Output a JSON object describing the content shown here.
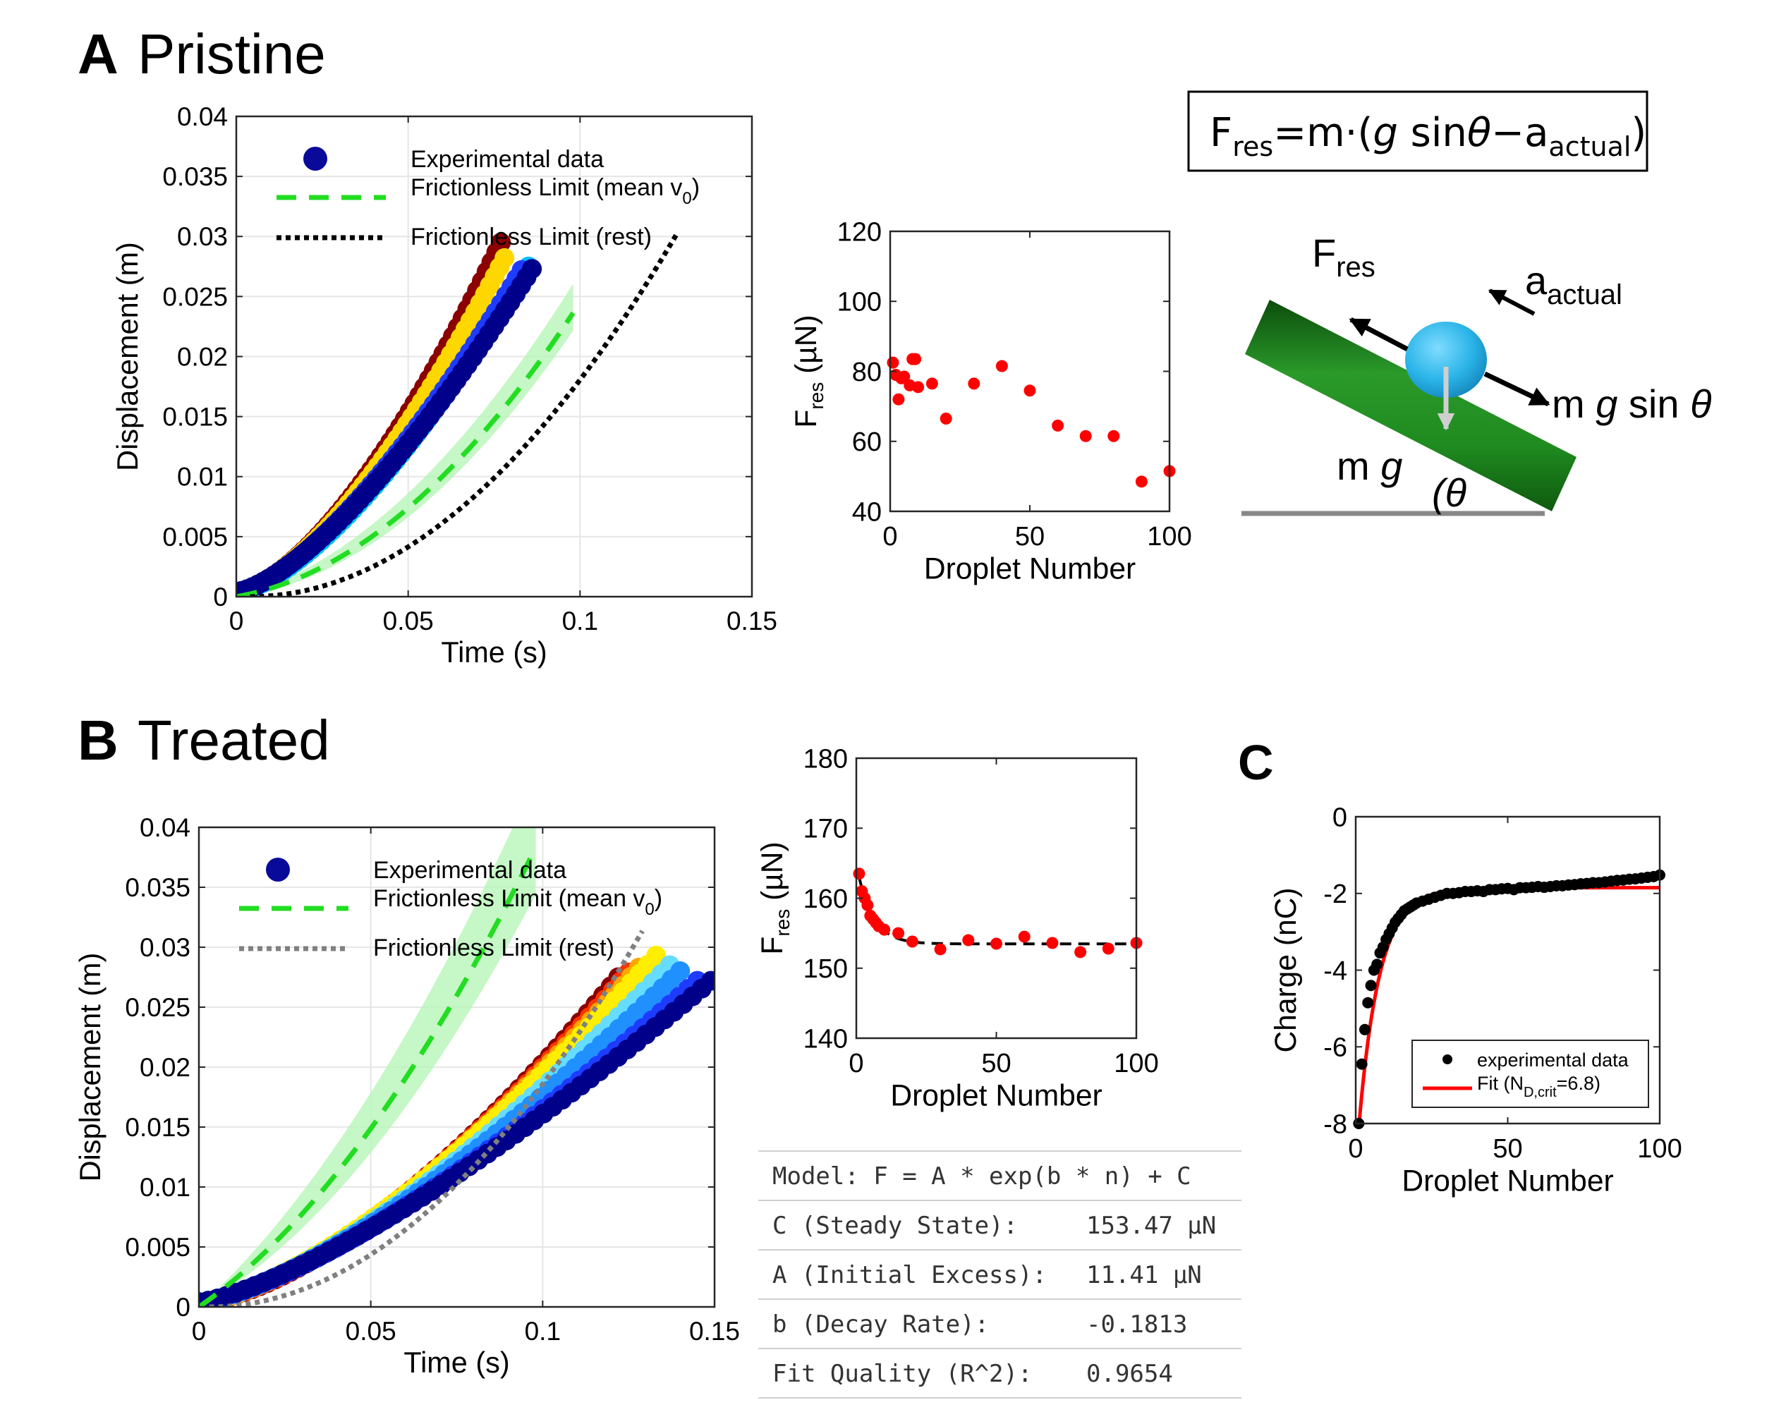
{
  "panels": {
    "A_letter": "A",
    "A_title": "Pristine",
    "B_letter": "B",
    "B_title": "Treated",
    "C_letter": "C"
  },
  "colors": {
    "frictionless_mean": "#22dd22",
    "band": "#b8f5b8",
    "rest_pristine": "#000000",
    "rest_treated": "#808080",
    "fres_points": "#ff0000",
    "fit_line": "#ff0000",
    "incline": "#1f8a1f",
    "droplet": "#2ab4e8"
  },
  "formula": {
    "lhs": "F",
    "lhs_sub": "res",
    "eq": "=m·(",
    "g": "g",
    "sin": " sin",
    "theta": "θ",
    "minus": "−a",
    "a_sub": "actual",
    "close": ")"
  },
  "diagram": {
    "fres": "F",
    "fres_sub": "res",
    "a": "a",
    "a_sub": "actual",
    "mgsin_m": "m ",
    "mgsin_g": "g",
    "mgsin_rest": " sin ",
    "mgsin_theta": "θ",
    "mg_m": "m ",
    "mg_g": "g",
    "angle": "(θ"
  },
  "fit_table": {
    "rows": [
      {
        "label": "Model: F = A * exp(b * n) + C",
        "value": ""
      },
      {
        "label": "C (Steady State):",
        "value": "153.47 µN"
      },
      {
        "label": "A (Initial Excess):",
        "value": "11.41 µN"
      },
      {
        "label": "b (Decay Rate):",
        "value": "-0.1813"
      },
      {
        "label": "Fit Quality (R^2):",
        "value": "0.9654"
      }
    ]
  },
  "chart_data": [
    {
      "id": "A_disp",
      "type": "scatter",
      "xlabel": "Time (s)",
      "ylabel": "Displacement (m)",
      "xlim": [
        0,
        0.15
      ],
      "ylim": [
        0,
        0.04
      ],
      "xticks": [
        "0",
        "0.05",
        "0.1",
        "0.15"
      ],
      "yticks": [
        "0",
        "0.005",
        "0.01",
        "0.015",
        "0.02",
        "0.025",
        "0.03",
        "0.035",
        "0.04"
      ],
      "grid": true,
      "legend": {
        "placement": "top-left",
        "entries": [
          "Experimental data",
          "Frictionless Limit (mean v",
          "Frictionless Limit (rest)"
        ],
        "subscript": "0"
      },
      "experimental_series_end_points": [
        {
          "color": "#8b0000",
          "t_end": 0.077,
          "d_end": 0.0295
        },
        {
          "color": "#ffd700",
          "t_end": 0.078,
          "d_end": 0.0282
        },
        {
          "color": "#00bfff",
          "t_end": 0.085,
          "d_end": 0.0275
        },
        {
          "color": "#1e3cff",
          "t_end": 0.083,
          "d_end": 0.0272
        },
        {
          "color": "#00008b",
          "t_end": 0.086,
          "d_end": 0.0273
        }
      ],
      "frictionless_mean": {
        "a": 3.9,
        "v0": 0.05,
        "band_low": 0.035,
        "band_high": 0.075
      },
      "frictionless_rest": {
        "a": 3.92,
        "t0": 0.004
      }
    },
    {
      "id": "A_fres",
      "type": "scatter",
      "xlabel": "Droplet Number",
      "ylabel": "F",
      "ylabel_sub": "res",
      "ylabel_unit": "(µN)",
      "xlim": [
        0,
        100
      ],
      "ylim": [
        40,
        120
      ],
      "xticks": [
        "0",
        "50",
        "100"
      ],
      "yticks": [
        "40",
        "60",
        "80",
        "100",
        "120"
      ],
      "points": [
        [
          1,
          82.5
        ],
        [
          2,
          79
        ],
        [
          3,
          72
        ],
        [
          4,
          78
        ],
        [
          5,
          78.5
        ],
        [
          7,
          76
        ],
        [
          8,
          83.5
        ],
        [
          9,
          83.5
        ],
        [
          10,
          75.5
        ],
        [
          15,
          76.5
        ],
        [
          20,
          66.5
        ],
        [
          30,
          76.5
        ],
        [
          40,
          81.5
        ],
        [
          50,
          74.5
        ],
        [
          60,
          64.5
        ],
        [
          70,
          61.5
        ],
        [
          80,
          61.5
        ],
        [
          90,
          48.5
        ],
        [
          100,
          51.5
        ]
      ]
    },
    {
      "id": "B_disp",
      "type": "scatter",
      "xlabel": "Time (s)",
      "ylabel": "Displacement (m)",
      "xlim": [
        0,
        0.15
      ],
      "ylim": [
        0,
        0.04
      ],
      "xticks": [
        "0",
        "0.05",
        "0.1",
        "0.15"
      ],
      "yticks": [
        "0",
        "0.005",
        "0.01",
        "0.015",
        "0.02",
        "0.025",
        "0.03",
        "0.035",
        "0.04"
      ],
      "grid": true,
      "legend": {
        "placement": "top-left",
        "entries": [
          "Experimental data",
          "Frictionless Limit (mean v",
          "Frictionless Limit (rest)"
        ],
        "subscript": "0"
      },
      "experimental_series_end_points": [
        {
          "color": "#8b0000",
          "t_end": 0.122,
          "d_end": 0.0275
        },
        {
          "color": "#ff3300",
          "t_end": 0.125,
          "d_end": 0.0279
        },
        {
          "color": "#ffa500",
          "t_end": 0.128,
          "d_end": 0.0283
        },
        {
          "color": "#ffee00",
          "t_end": 0.133,
          "d_end": 0.0293
        },
        {
          "color": "#66ddff",
          "t_end": 0.137,
          "d_end": 0.0285
        },
        {
          "color": "#2090ff",
          "t_end": 0.14,
          "d_end": 0.028
        },
        {
          "color": "#1e3cff",
          "t_end": 0.145,
          "d_end": 0.0272
        },
        {
          "color": "#00008b",
          "t_end": 0.149,
          "d_end": 0.0272
        }
      ],
      "frictionless_mean": {
        "a": 3.9,
        "v0": 0.2,
        "band_low": 0.16,
        "band_high": 0.26
      },
      "frictionless_rest": {
        "a": 3.95,
        "t0": 0.003
      }
    },
    {
      "id": "B_fres",
      "type": "scatter",
      "xlabel": "Droplet Number",
      "ylabel": "F",
      "ylabel_sub": "res",
      "ylabel_unit": "(µN)",
      "xlim": [
        0,
        100
      ],
      "ylim": [
        140,
        180
      ],
      "xticks": [
        "0",
        "50",
        "100"
      ],
      "yticks": [
        "140",
        "150",
        "160",
        "170",
        "180"
      ],
      "points": [
        [
          1,
          163.5
        ],
        [
          2,
          161
        ],
        [
          3,
          160
        ],
        [
          4,
          159
        ],
        [
          5,
          157.5
        ],
        [
          6,
          157
        ],
        [
          7,
          156.5
        ],
        [
          8,
          156
        ],
        [
          10,
          155.5
        ],
        [
          15,
          155
        ],
        [
          20,
          153.8
        ],
        [
          30,
          152.7
        ],
        [
          40,
          154
        ],
        [
          50,
          153.5
        ],
        [
          60,
          154.5
        ],
        [
          70,
          153.6
        ],
        [
          80,
          152.3
        ],
        [
          90,
          152.8
        ],
        [
          100,
          153.6
        ]
      ],
      "fit": {
        "A": 11.41,
        "b": -0.1813,
        "C": 153.47
      }
    },
    {
      "id": "C_charge",
      "type": "scatter",
      "xlabel": "Droplet Number",
      "ylabel": "Charge (nC)",
      "xlim": [
        0,
        100
      ],
      "ylim": [
        -8,
        0
      ],
      "xticks": [
        "0",
        "50",
        "100"
      ],
      "yticks": [
        "0",
        "-2",
        "-4",
        "-6",
        "-8"
      ],
      "legend": {
        "placement": "bottom-right",
        "entries": [
          "experimental data",
          "Fit (N",
          "=6.8)"
        ],
        "subscript": "D,crit"
      },
      "fit": {
        "start": -8.1,
        "plateau": -1.85,
        "n0": 1,
        "tau": 6.8
      },
      "points": [
        [
          1,
          -8.0
        ],
        [
          2,
          -6.45
        ],
        [
          3,
          -5.55
        ],
        [
          4,
          -4.85
        ],
        [
          5,
          -4.4
        ],
        [
          6,
          -4.0
        ],
        [
          7,
          -3.85
        ],
        [
          8,
          -3.55
        ],
        [
          9,
          -3.4
        ],
        [
          10,
          -3.2
        ],
        [
          11,
          -3.05
        ],
        [
          12,
          -2.9
        ],
        [
          13,
          -2.75
        ],
        [
          14,
          -2.65
        ],
        [
          15,
          -2.55
        ],
        [
          16,
          -2.45
        ],
        [
          17,
          -2.4
        ],
        [
          18,
          -2.35
        ],
        [
          19,
          -2.3
        ],
        [
          20,
          -2.25
        ],
        [
          22,
          -2.2
        ],
        [
          24,
          -2.15
        ],
        [
          26,
          -2.1
        ],
        [
          28,
          -2.05
        ],
        [
          30,
          -2.0
        ],
        [
          32,
          -2.0
        ],
        [
          34,
          -1.98
        ],
        [
          36,
          -1.95
        ],
        [
          38,
          -1.95
        ],
        [
          40,
          -1.93
        ],
        [
          42,
          -1.95
        ],
        [
          44,
          -1.9
        ],
        [
          46,
          -1.9
        ],
        [
          48,
          -1.88
        ],
        [
          50,
          -1.87
        ],
        [
          52,
          -1.9
        ],
        [
          54,
          -1.85
        ],
        [
          56,
          -1.85
        ],
        [
          58,
          -1.84
        ],
        [
          60,
          -1.82
        ],
        [
          62,
          -1.84
        ],
        [
          64,
          -1.82
        ],
        [
          66,
          -1.8
        ],
        [
          68,
          -1.8
        ],
        [
          70,
          -1.78
        ],
        [
          72,
          -1.77
        ],
        [
          74,
          -1.75
        ],
        [
          76,
          -1.74
        ],
        [
          78,
          -1.72
        ],
        [
          80,
          -1.72
        ],
        [
          82,
          -1.7
        ],
        [
          84,
          -1.68
        ],
        [
          86,
          -1.66
        ],
        [
          88,
          -1.65
        ],
        [
          90,
          -1.63
        ],
        [
          92,
          -1.62
        ],
        [
          94,
          -1.6
        ],
        [
          96,
          -1.58
        ],
        [
          98,
          -1.56
        ],
        [
          100,
          -1.52
        ]
      ]
    }
  ]
}
